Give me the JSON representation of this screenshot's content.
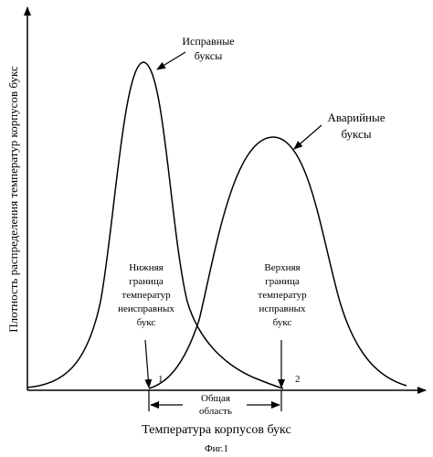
{
  "figure": {
    "y_axis_label": "Плотность распределения температур корпусов букс",
    "x_axis_label": "Температура корпусов букс",
    "caption": "Фиг.1",
    "curve_good": {
      "label_line1": "Исправные",
      "label_line2": "буксы"
    },
    "curve_faulty": {
      "label_line1": "Аварийные",
      "label_line2": "буксы"
    },
    "lower_bound": {
      "lines": [
        "Нижняя",
        "граница",
        "температур",
        "неисправных",
        "букс"
      ],
      "marker": "1"
    },
    "upper_bound": {
      "lines": [
        "Верхняя",
        "граница",
        "температур",
        "исправных",
        "букс"
      ],
      "marker": "2"
    },
    "overlap": {
      "line1": "Общая",
      "line2": "область"
    },
    "colors": {
      "ink": "#000000",
      "background": "#ffffff"
    }
  }
}
